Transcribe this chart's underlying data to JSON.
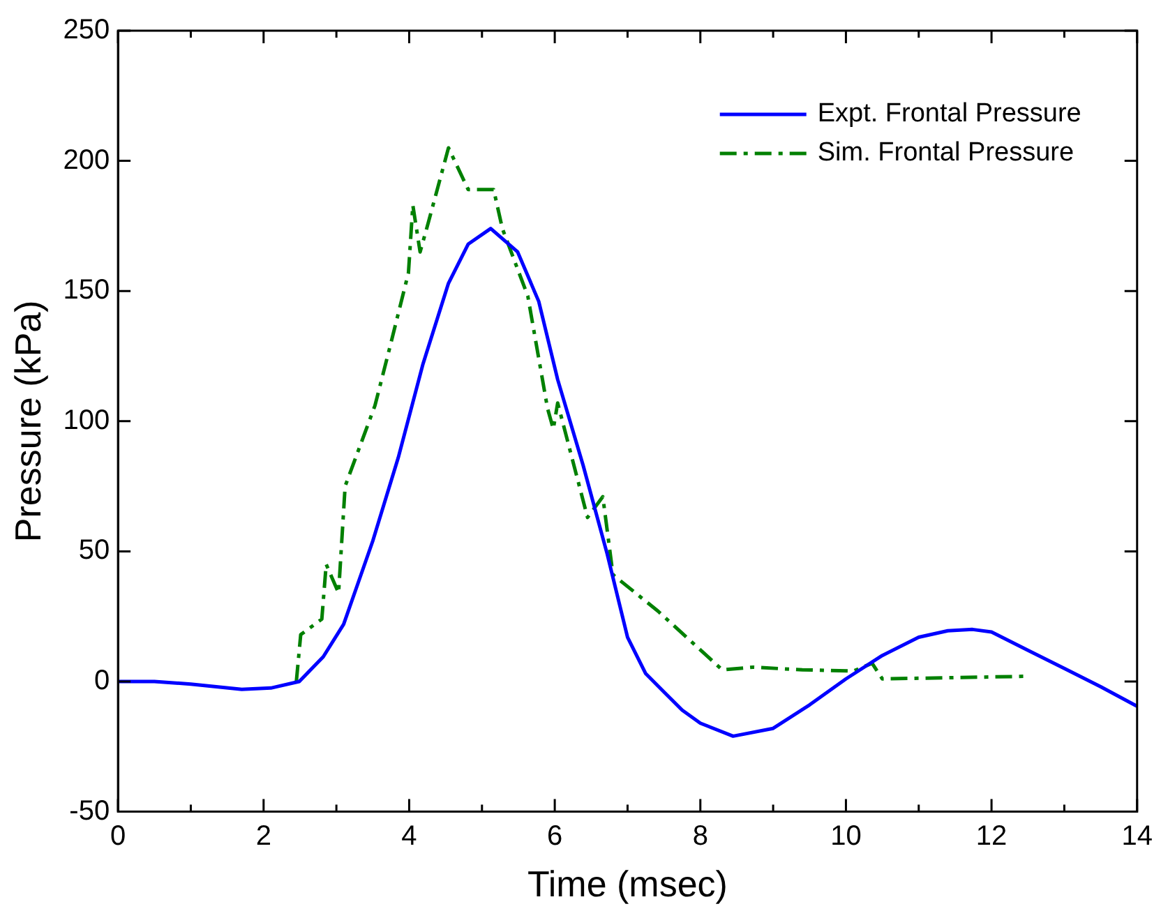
{
  "chart_data": {
    "type": "line",
    "xlabel": "Time (msec)",
    "ylabel": "Pressure (kPa)",
    "xlim": [
      0,
      14
    ],
    "ylim": [
      -50,
      250
    ],
    "xticks": [
      0,
      {
        "value": 1,
        "label": null
      },
      2,
      {
        "value": 3,
        "label": null
      },
      4,
      {
        "value": 5,
        "label": null
      },
      6,
      {
        "value": 7,
        "label": null
      },
      8,
      {
        "value": 9,
        "label": null
      },
      10,
      {
        "value": 11,
        "label": null
      },
      12,
      {
        "value": 13,
        "label": null
      },
      14
    ],
    "yticks": [
      -50,
      0,
      50,
      100,
      150,
      200,
      250
    ],
    "legend": "top right",
    "marker": "none",
    "series": [
      {
        "name": "Expt. Frontal Pressure",
        "color": "#0000ff",
        "line_style": "solid",
        "x": [
          0,
          0.5,
          1,
          1.7,
          2.1,
          2.49,
          2.82,
          3.1,
          3.5,
          3.85,
          4.19,
          4.54,
          4.81,
          5.12,
          5.49,
          5.78,
          6.04,
          6.39,
          6.72,
          7,
          7.25,
          7.5,
          7.75,
          8,
          8.45,
          9,
          9.5,
          10,
          10.5,
          11,
          11.4,
          11.74,
          12,
          12.5,
          13,
          13.5,
          14
        ],
        "values": [
          0,
          0,
          -1,
          -3,
          -2.5,
          0,
          9.5,
          22,
          54,
          86,
          122,
          153,
          168,
          174,
          165,
          146,
          116,
          83,
          49,
          17,
          3,
          -4,
          -11,
          -16,
          -21,
          -18,
          -9,
          1,
          10,
          17,
          19.5,
          20,
          19,
          12,
          5,
          -2,
          -9.5
        ]
      },
      {
        "name": "Sim. Frontal Pressure",
        "color": "#008000",
        "line_style": "dashdot",
        "x": [
          2.45,
          2.51,
          2.8,
          2.86,
          3.03,
          3.12,
          3.53,
          3.74,
          3.99,
          4.05,
          4.15,
          4.26,
          4.54,
          4.81,
          5.16,
          5.28,
          5.63,
          5.9,
          5.98,
          6.04,
          6.45,
          6.66,
          6.8,
          7.42,
          8.3,
          8.72,
          9.4,
          10.1,
          10.36,
          10.5,
          12.48
        ],
        "values": [
          0,
          18,
          24,
          45,
          34,
          75,
          106,
          129,
          157,
          183,
          165,
          176,
          205,
          189,
          189,
          174,
          148,
          105,
          97,
          107,
          63,
          71,
          41,
          27,
          4.5,
          5.5,
          4.5,
          4,
          7,
          1,
          2
        ]
      }
    ]
  }
}
